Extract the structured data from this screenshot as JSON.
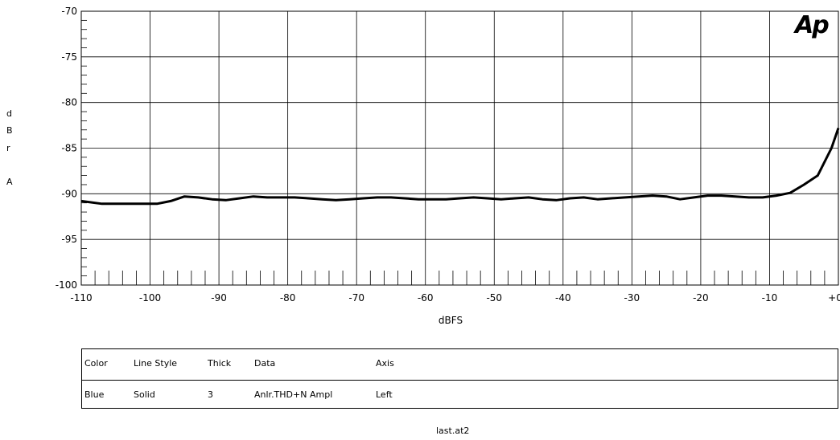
{
  "chart_data": {
    "type": "line",
    "xlabel": "dBFS",
    "ylabel_letters": [
      "d",
      "B",
      "r",
      "A"
    ],
    "xlim": [
      -110,
      0
    ],
    "ylim": [
      -100,
      -70
    ],
    "x_ticks": [
      "-110",
      "-100",
      "-90",
      "-80",
      "-70",
      "-60",
      "-50",
      "-40",
      "-30",
      "-20",
      "-10",
      "+0"
    ],
    "y_ticks": [
      "-70",
      "-75",
      "-80",
      "-85",
      "-90",
      "-95",
      "-100"
    ],
    "series": [
      {
        "x": [
          -110,
          -107,
          -105,
          -103,
          -101,
          -99,
          -97,
          -95,
          -93,
          -91,
          -89,
          -87,
          -85,
          -83,
          -81,
          -79,
          -77,
          -75,
          -73,
          -71,
          -69,
          -67,
          -65,
          -63,
          -61,
          -59,
          -57,
          -55,
          -53,
          -51,
          -49,
          -47,
          -45,
          -43,
          -41,
          -39,
          -37,
          -35,
          -33,
          -31,
          -29,
          -27,
          -25,
          -23,
          -21,
          -19,
          -17,
          -15,
          -13,
          -11,
          -9,
          -7,
          -5,
          -3,
          -1,
          0
        ],
        "y": [
          -90.8,
          -91.1,
          -91.1,
          -91.1,
          -91.1,
          -91.1,
          -90.8,
          -90.3,
          -90.4,
          -90.6,
          -90.7,
          -90.5,
          -90.3,
          -90.4,
          -90.4,
          -90.4,
          -90.5,
          -90.6,
          -90.7,
          -90.6,
          -90.5,
          -90.4,
          -90.4,
          -90.5,
          -90.6,
          -90.6,
          -90.6,
          -90.5,
          -90.4,
          -90.5,
          -90.6,
          -90.5,
          -90.4,
          -90.6,
          -90.7,
          -90.5,
          -90.4,
          -90.6,
          -90.5,
          -90.4,
          -90.3,
          -90.2,
          -90.3,
          -90.6,
          -90.4,
          -90.2,
          -90.2,
          -90.3,
          -90.4,
          -90.4,
          -90.2,
          -89.9,
          -89.0,
          -88.0,
          -85.0,
          -82.8
        ]
      }
    ]
  },
  "logo_text": "Ap",
  "legend": {
    "headers": [
      "Color",
      "Line Style",
      "Thick",
      "Data",
      "Axis"
    ],
    "row": [
      "Blue",
      "Solid",
      "3",
      "Anlr.THD+N Ampl",
      "Left"
    ]
  },
  "filename": "last.at2"
}
